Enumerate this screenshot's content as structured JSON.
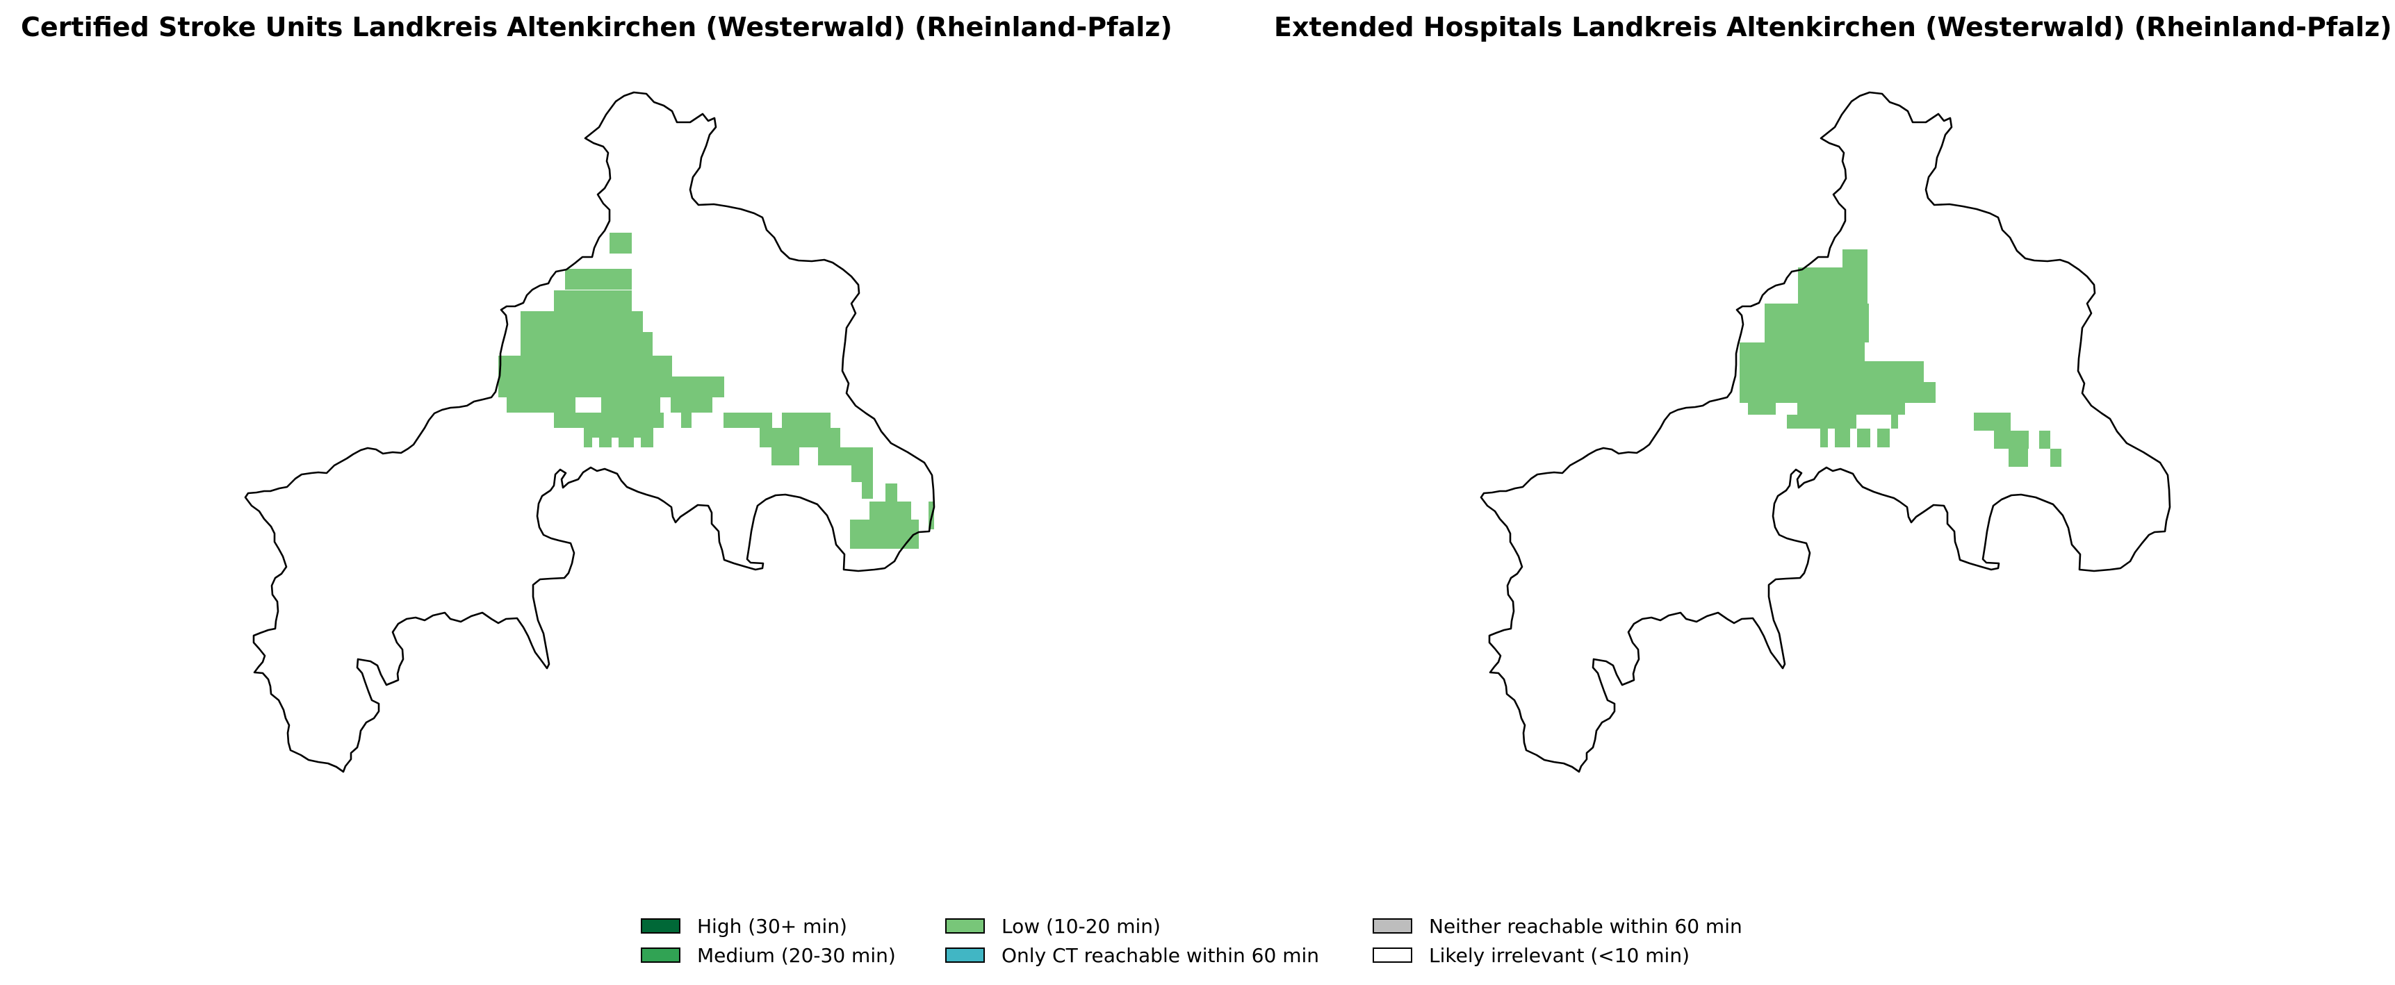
{
  "panels": [
    {
      "title": "Certified Stroke Units Landkreis Altenkirchen (Westerwald) (Rheinland-Pfalz)"
    },
    {
      "title": "Extended Hospitals Landkreis Altenkirchen (Westerwald) (Rheinland-Pfalz)"
    }
  ],
  "legend": {
    "items": [
      {
        "label": "High (30+ min)",
        "color": "#006837"
      },
      {
        "label": "Medium (20-30 min)",
        "color": "#31a354"
      },
      {
        "label": "Low (10-20 min)",
        "color": "#78c679"
      },
      {
        "label": "Only CT reachable within 60 min",
        "color": "#41b6c4"
      },
      {
        "label": "Neither reachable within 60 min",
        "color": "#bdbdbd"
      },
      {
        "label": "Likely irrelevant (<10 min)",
        "color": "#ffffff"
      }
    ]
  },
  "style": {
    "boundary_color": "#000000",
    "category_shown": "Low (10-20 min)"
  }
}
